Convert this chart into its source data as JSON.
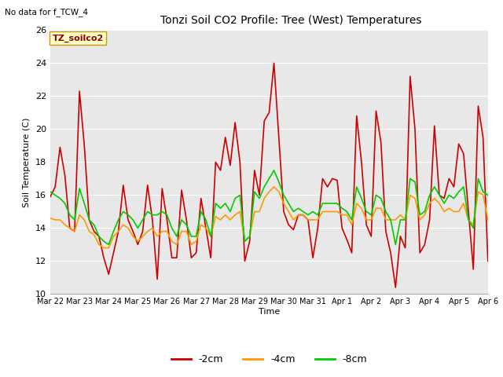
{
  "title": "Tonzi Soil CO2 Profile: Tree (West) Temperatures",
  "ylabel": "Soil Temperature (C)",
  "xlabel": "Time",
  "no_data_text": "No data for f_TCW_4",
  "watermark_text": "TZ_soilco2",
  "ylim": [
    10,
    26
  ],
  "xlim": [
    0,
    375
  ],
  "yticks": [
    10,
    12,
    14,
    16,
    18,
    20,
    22,
    24,
    26
  ],
  "xtick_labels": [
    "Mar 22",
    "Mar 23",
    "Mar 24",
    "Mar 25",
    "Mar 26",
    "Mar 27",
    "Mar 28",
    "Mar 29",
    "Mar 30",
    "Mar 31",
    "Apr 1",
    "Apr 2",
    "Apr 3",
    "Apr 4",
    "Apr 5",
    "Apr 6"
  ],
  "xtick_positions": [
    0,
    25,
    50,
    75,
    100,
    125,
    150,
    175,
    200,
    225,
    250,
    275,
    300,
    325,
    350,
    375
  ],
  "bg_color": "#e8e8e8",
  "line_colors": [
    "#cc0000",
    "#ff9900",
    "#00cc00"
  ],
  "line_labels": [
    "-2cm",
    "-4cm",
    "-8cm"
  ],
  "line_width": 1.2,
  "red": [
    15.9,
    16.5,
    18.9,
    17.2,
    14.0,
    13.8,
    22.3,
    19.0,
    14.5,
    13.8,
    13.5,
    12.2,
    11.2,
    12.5,
    13.8,
    16.6,
    14.5,
    13.8,
    13.0,
    13.8,
    16.6,
    14.5,
    10.9,
    16.4,
    14.5,
    12.2,
    12.2,
    16.3,
    14.5,
    12.2,
    12.5,
    15.8,
    14.0,
    12.2,
    18.0,
    17.5,
    19.5,
    17.8,
    20.4,
    18.0,
    12.0,
    13.2,
    17.5,
    16.0,
    20.5,
    21.0,
    24.0,
    19.5,
    15.0,
    14.2,
    13.9,
    14.8,
    14.8,
    14.5,
    12.2,
    14.0,
    17.0,
    16.5,
    17.0,
    16.9,
    14.0,
    13.3,
    12.5,
    20.8,
    18.0,
    14.2,
    13.5,
    21.1,
    19.2,
    13.8,
    12.5,
    10.4,
    13.5,
    12.8,
    23.2,
    20.0,
    12.5,
    13.0,
    14.5,
    20.2,
    16.0,
    15.8,
    17.0,
    16.5,
    19.1,
    18.5,
    15.0,
    11.5,
    21.4,
    19.5,
    12.0
  ],
  "orange": [
    14.6,
    14.5,
    14.5,
    14.2,
    14.0,
    13.8,
    14.8,
    14.5,
    13.8,
    13.6,
    13.0,
    12.8,
    12.8,
    13.5,
    13.8,
    14.2,
    14.0,
    13.5,
    13.2,
    13.5,
    13.8,
    14.0,
    13.5,
    13.8,
    13.8,
    13.2,
    13.0,
    13.8,
    13.8,
    13.0,
    13.2,
    14.2,
    14.0,
    13.5,
    14.7,
    14.5,
    14.8,
    14.5,
    14.8,
    15.0,
    13.2,
    13.5,
    15.0,
    15.0,
    15.8,
    16.2,
    16.5,
    16.2,
    15.5,
    15.0,
    14.5,
    14.8,
    14.8,
    14.5,
    14.5,
    14.5,
    15.0,
    15.0,
    15.0,
    15.0,
    14.8,
    14.8,
    14.2,
    15.5,
    15.2,
    14.5,
    14.5,
    15.2,
    15.2,
    14.5,
    14.5,
    14.5,
    14.8,
    14.5,
    16.0,
    15.8,
    14.5,
    14.8,
    15.5,
    15.8,
    15.5,
    15.0,
    15.2,
    15.0,
    15.0,
    15.5,
    14.5,
    14.2,
    16.2,
    16.0,
    14.5
  ],
  "green": [
    16.2,
    16.0,
    15.8,
    15.5,
    14.8,
    14.5,
    16.4,
    15.5,
    14.5,
    14.2,
    13.5,
    13.2,
    13.0,
    13.8,
    14.5,
    15.0,
    14.8,
    14.5,
    14.0,
    14.5,
    15.0,
    14.8,
    14.8,
    15.0,
    14.8,
    14.0,
    13.5,
    14.5,
    14.2,
    13.5,
    13.5,
    15.0,
    14.5,
    13.5,
    15.5,
    15.2,
    15.5,
    15.0,
    15.8,
    16.0,
    13.2,
    13.5,
    16.2,
    15.8,
    16.5,
    17.0,
    17.5,
    16.8,
    16.0,
    15.5,
    15.0,
    15.2,
    15.0,
    14.8,
    15.0,
    14.8,
    15.5,
    15.5,
    15.5,
    15.5,
    15.2,
    15.0,
    14.5,
    16.5,
    15.8,
    15.0,
    14.8,
    16.0,
    15.8,
    15.0,
    14.5,
    13.0,
    14.5,
    14.5,
    17.0,
    16.8,
    14.8,
    15.0,
    16.0,
    16.5,
    16.0,
    15.5,
    16.0,
    15.8,
    16.2,
    16.5,
    14.5,
    14.0,
    17.0,
    16.2,
    16.0
  ]
}
